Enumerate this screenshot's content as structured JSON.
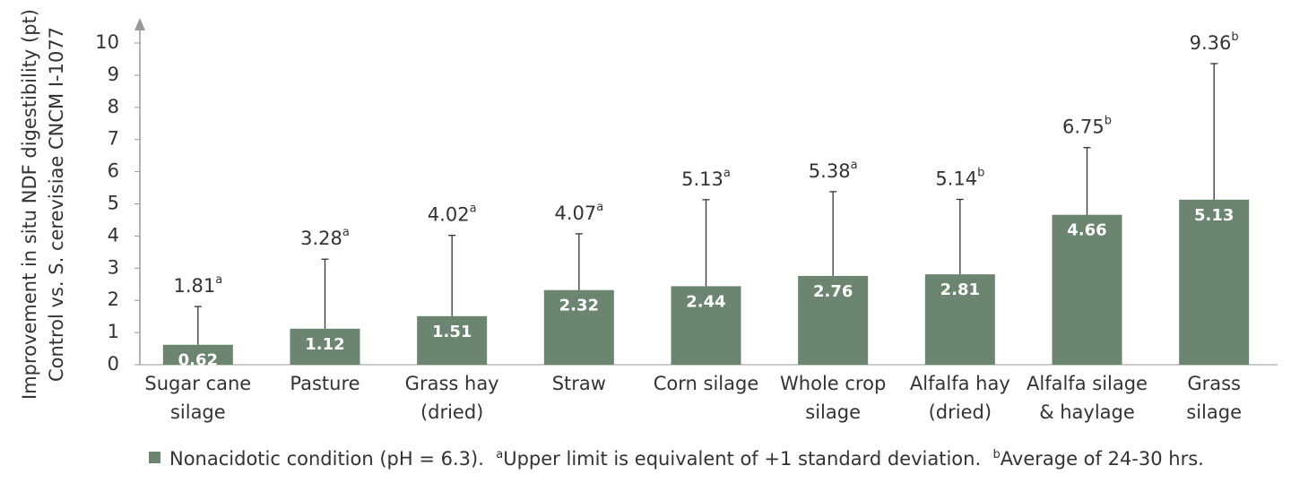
{
  "chart_data": {
    "type": "bar",
    "y_label": [
      "Improvement in situ NDF digestibility (pt)",
      "Control vs. S. cerevisiae CNCM I-1077"
    ],
    "categories": [
      "Sugar cane\nsilage",
      "Pasture",
      "Grass hay\n(dried)",
      "Straw",
      "Corn silage",
      "Whole crop\nsilage",
      "Alfalfa hay\n(dried)",
      "Alfalfa silage\n& haylage",
      "Grass\nsilage"
    ],
    "series": [
      {
        "name": "Nonacidotic condition (pH = 6.3).",
        "color": "#6b8570",
        "values": [
          0.62,
          1.12,
          1.51,
          2.32,
          2.44,
          2.76,
          2.81,
          4.66,
          5.13
        ],
        "upper": [
          1.81,
          3.28,
          4.02,
          4.07,
          5.13,
          5.38,
          5.14,
          6.75,
          9.36
        ],
        "upper_notes": [
          "a",
          "a",
          "a",
          "a",
          "a",
          "a",
          "b",
          "b",
          "b"
        ]
      }
    ],
    "footnotes": [
      {
        "mark": "a",
        "text": "Upper limit is equivalent of +1 standard deviation."
      },
      {
        "mark": "b",
        "text": "Average of 24-30 hrs."
      }
    ],
    "ylim": [
      0,
      10
    ],
    "yticks": [
      0,
      1,
      2,
      3,
      4,
      5,
      6,
      7,
      8,
      9,
      10
    ],
    "grid": false
  }
}
